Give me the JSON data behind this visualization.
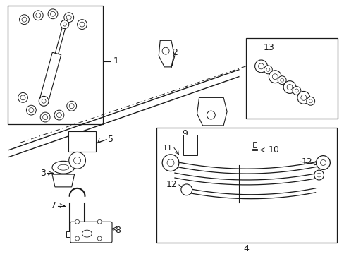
{
  "background_color": "#ffffff",
  "line_color": "#1a1a1a",
  "fig_width": 4.89,
  "fig_height": 3.6,
  "dpi": 100,
  "xlim": [
    0,
    489
  ],
  "ylim": [
    0,
    360
  ]
}
